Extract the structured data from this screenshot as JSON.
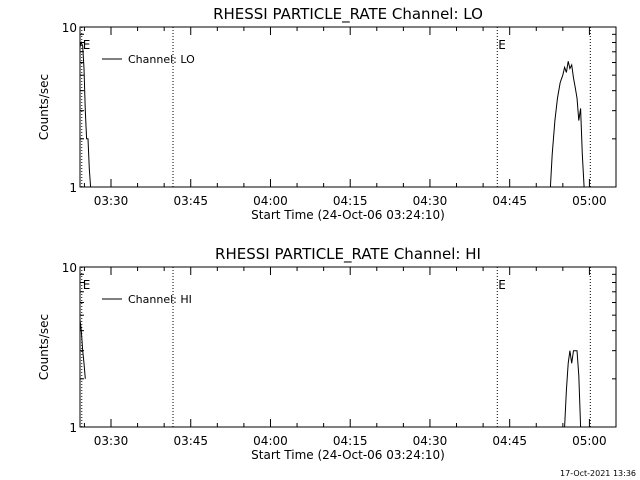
{
  "chart_data": [
    {
      "type": "line",
      "title": "RHESSI PARTICLE_RATE Channel: LO",
      "xlabel": "Start Time (24-Oct-06 03:24:10)",
      "ylabel": "Counts/sec",
      "xlim": [
        "03:24:10",
        "05:05:00"
      ],
      "ylim": [
        1,
        10
      ],
      "y_scale": "log",
      "x_ticks": [
        "03:30",
        "03:45",
        "04:00",
        "04:15",
        "04:30",
        "04:45",
        "05:00"
      ],
      "y_ticks": [
        "1",
        "10"
      ],
      "legend": {
        "label": "Channel: LO",
        "position": "top-left"
      },
      "markers": [
        {
          "time": "03:24:30",
          "label": "E"
        },
        {
          "time": "03:41:40",
          "label": ""
        },
        {
          "time": "04:42:40",
          "label": "E"
        },
        {
          "time": "05:00:10",
          "label": ""
        }
      ],
      "series": [
        {
          "segments": [
            [
              [
                "03:24:10",
                7.5
              ],
              [
                "03:24:25",
                8.0
              ],
              [
                "03:24:40",
                7.6
              ],
              [
                "03:24:55",
                5.5
              ],
              [
                "03:25:10",
                3.0
              ],
              [
                "03:25:25",
                2.0
              ],
              [
                "03:25:40",
                2.0
              ],
              [
                "03:25:55",
                1.3
              ],
              [
                "03:26:10",
                1.0
              ]
            ],
            [
              [
                "04:52:40",
                1.0
              ],
              [
                "04:53:00",
                1.6
              ],
              [
                "04:53:30",
                2.6
              ],
              [
                "04:54:00",
                3.6
              ],
              [
                "04:54:30",
                4.5
              ],
              [
                "04:55:00",
                5.0
              ],
              [
                "04:55:20",
                5.6
              ],
              [
                "04:55:40",
                5.2
              ],
              [
                "04:56:00",
                6.1
              ],
              [
                "04:56:20",
                5.5
              ],
              [
                "04:56:40",
                5.8
              ],
              [
                "04:57:00",
                4.8
              ],
              [
                "04:57:20",
                4.2
              ],
              [
                "04:57:40",
                3.6
              ],
              [
                "04:58:00",
                2.6
              ],
              [
                "04:58:20",
                3.1
              ],
              [
                "04:58:40",
                1.6
              ],
              [
                "04:59:00",
                1.0
              ]
            ]
          ]
        }
      ]
    },
    {
      "type": "line",
      "title": "RHESSI PARTICLE_RATE Channel: HI",
      "xlabel": "Start Time (24-Oct-06 03:24:10)",
      "ylabel": "Counts/sec",
      "xlim": [
        "03:24:10",
        "05:05:00"
      ],
      "ylim": [
        1,
        10
      ],
      "y_scale": "log",
      "x_ticks": [
        "03:30",
        "03:45",
        "04:00",
        "04:15",
        "04:30",
        "04:45",
        "05:00"
      ],
      "y_ticks": [
        "1",
        "10"
      ],
      "legend": {
        "label": "Channel: HI",
        "position": "top-left"
      },
      "markers": [
        {
          "time": "03:24:30",
          "label": "E"
        },
        {
          "time": "03:41:40",
          "label": ""
        },
        {
          "time": "04:42:40",
          "label": "E"
        },
        {
          "time": "05:00:10",
          "label": ""
        }
      ],
      "series": [
        {
          "segments": [
            [
              [
                "03:24:10",
                4.7
              ],
              [
                "03:24:25",
                4.0
              ],
              [
                "03:24:40",
                3.0
              ],
              [
                "03:24:55",
                2.5
              ],
              [
                "03:25:10",
                2.0
              ]
            ],
            [
              [
                "04:55:20",
                1.0
              ],
              [
                "04:55:40",
                1.7
              ],
              [
                "04:56:00",
                2.5
              ],
              [
                "04:56:20",
                3.0
              ],
              [
                "04:56:40",
                2.5
              ],
              [
                "04:57:00",
                3.0
              ],
              [
                "04:57:40",
                3.0
              ],
              [
                "04:58:00",
                2.1
              ],
              [
                "04:58:20",
                1.0
              ]
            ]
          ]
        }
      ]
    }
  ],
  "footer": {
    "timestamp": "17-Oct-2021 13:36"
  }
}
